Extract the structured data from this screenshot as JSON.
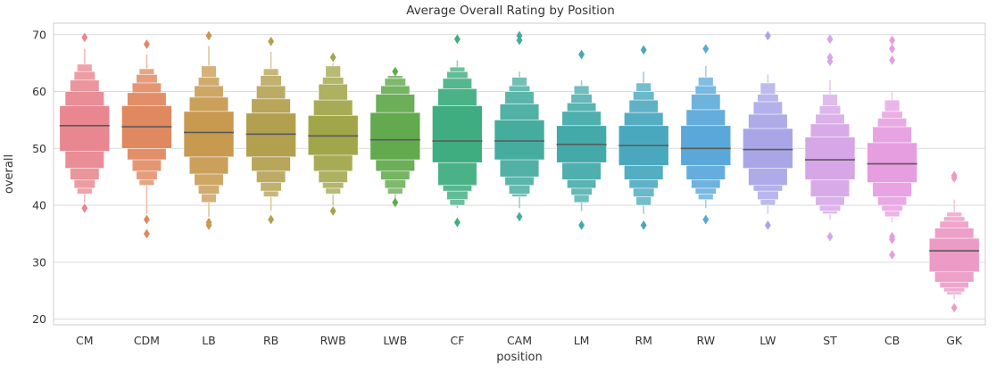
{
  "chart_data": {
    "type": "boxen",
    "title": "Average Overall Rating by Position",
    "xlabel": "position",
    "ylabel": "overall",
    "ylim": [
      19,
      72
    ],
    "yticks": [
      20,
      30,
      40,
      50,
      60,
      70
    ],
    "grid": true,
    "legend": "none",
    "categories": [
      "CM",
      "CDM",
      "LB",
      "RB",
      "RWB",
      "LWB",
      "CF",
      "CAM",
      "LM",
      "RM",
      "RW",
      "LW",
      "ST",
      "CB",
      "GK"
    ],
    "series": [
      {
        "category": "CM",
        "color": "#e8878f",
        "median": 54.0,
        "levels": [
          [
            49.5,
            57.5
          ],
          [
            46.5,
            60.0
          ],
          [
            44.5,
            62.0
          ],
          [
            43.0,
            63.5
          ],
          [
            42.0,
            64.8
          ]
        ],
        "whisker": [
          40.5,
          67.5
        ],
        "outliers": [
          39.5,
          69.5
        ]
      },
      {
        "category": "CDM",
        "color": "#e0885f",
        "median": 53.8,
        "levels": [
          [
            50.0,
            57.5
          ],
          [
            48.0,
            59.8
          ],
          [
            46.0,
            61.5
          ],
          [
            44.5,
            63.0
          ],
          [
            43.5,
            64.0
          ]
        ],
        "whisker": [
          38.5,
          66.5
        ],
        "outliers": [
          37.5,
          35.0,
          68.3
        ]
      },
      {
        "category": "LB",
        "color": "#c79a50",
        "median": 52.8,
        "levels": [
          [
            48.5,
            56.5
          ],
          [
            45.5,
            59.0
          ],
          [
            43.5,
            61.0
          ],
          [
            42.0,
            62.5
          ],
          [
            40.5,
            64.5
          ]
        ],
        "whisker": [
          38.0,
          68.0
        ],
        "outliers": [
          37.0,
          36.5,
          69.8
        ]
      },
      {
        "category": "RB",
        "color": "#b3a04f",
        "median": 52.5,
        "levels": [
          [
            48.5,
            56.2
          ],
          [
            46.0,
            58.7
          ],
          [
            44.0,
            61.0
          ],
          [
            42.5,
            62.8
          ],
          [
            41.5,
            64.0
          ]
        ],
        "whisker": [
          39.0,
          67.0
        ],
        "outliers": [
          37.5,
          68.8
        ]
      },
      {
        "category": "RWB",
        "color": "#a2a64a",
        "median": 52.2,
        "levels": [
          [
            48.8,
            55.8
          ],
          [
            46.0,
            58.5
          ],
          [
            44.0,
            61.3
          ],
          [
            43.0,
            62.5
          ],
          [
            42.0,
            64.5
          ]
        ],
        "whisker": [
          40.0,
          65.0
        ],
        "outliers": [
          39.0,
          66.0
        ]
      },
      {
        "category": "LWB",
        "color": "#62aa4d",
        "median": 51.5,
        "levels": [
          [
            48.0,
            56.3
          ],
          [
            46.0,
            59.5
          ],
          [
            44.5,
            61.0
          ],
          [
            43.0,
            62.3
          ],
          [
            42.0,
            62.8
          ]
        ],
        "whisker": [
          41.0,
          63.0
        ],
        "outliers": [
          40.5,
          63.5
        ]
      },
      {
        "category": "CF",
        "color": "#3fad80",
        "median": 51.3,
        "levels": [
          [
            47.5,
            57.5
          ],
          [
            43.5,
            60.5
          ],
          [
            42.5,
            62.3
          ],
          [
            41.0,
            63.5
          ],
          [
            40.0,
            64.3
          ]
        ],
        "whisker": [
          39.5,
          65.5
        ],
        "outliers": [
          37.0,
          69.2
        ]
      },
      {
        "category": "CAM",
        "color": "#45ac9e",
        "median": 51.3,
        "levels": [
          [
            48.0,
            55.0
          ],
          [
            45.0,
            57.8
          ],
          [
            43.5,
            60.0
          ],
          [
            42.0,
            61.0
          ],
          [
            41.5,
            62.5
          ]
        ],
        "whisker": [
          39.5,
          63.5
        ],
        "outliers": [
          38.0,
          69.8,
          69.0
        ]
      },
      {
        "category": "LM",
        "color": "#43aaa9",
        "median": 50.7,
        "levels": [
          [
            47.5,
            54.0
          ],
          [
            44.5,
            56.5
          ],
          [
            43.0,
            58.0
          ],
          [
            41.8,
            59.5
          ],
          [
            40.5,
            61.0
          ]
        ],
        "whisker": [
          39.0,
          62.0
        ],
        "outliers": [
          36.5,
          66.5
        ]
      },
      {
        "category": "RM",
        "color": "#49a8be",
        "median": 50.5,
        "levels": [
          [
            47.0,
            54.0
          ],
          [
            44.5,
            56.3
          ],
          [
            43.0,
            58.5
          ],
          [
            41.5,
            60.0
          ],
          [
            40.0,
            61.5
          ]
        ],
        "whisker": [
          38.5,
          63.5
        ],
        "outliers": [
          36.5,
          67.3
        ]
      },
      {
        "category": "RW",
        "color": "#5aa8da",
        "median": 50.0,
        "levels": [
          [
            47.0,
            54.0
          ],
          [
            44.5,
            56.8
          ],
          [
            43.0,
            59.5
          ],
          [
            42.0,
            61.0
          ],
          [
            41.0,
            62.5
          ]
        ],
        "whisker": [
          39.5,
          64.5
        ],
        "outliers": [
          37.5,
          67.5
        ]
      },
      {
        "category": "LW",
        "color": "#a9a6e8",
        "median": 49.8,
        "levels": [
          [
            46.5,
            53.5
          ],
          [
            43.5,
            56.0
          ],
          [
            42.5,
            58.2
          ],
          [
            41.0,
            59.5
          ],
          [
            40.0,
            61.5
          ]
        ],
        "whisker": [
          38.5,
          63.0
        ],
        "outliers": [
          36.5,
          69.8
        ]
      },
      {
        "category": "ST",
        "color": "#d6a6e6",
        "median": 48.0,
        "levels": [
          [
            44.5,
            52.0
          ],
          [
            41.5,
            54.3
          ],
          [
            40.0,
            56.0
          ],
          [
            39.0,
            57.5
          ],
          [
            38.5,
            59.5
          ]
        ],
        "whisker": [
          37.5,
          62.0
        ],
        "outliers": [
          34.5,
          65.3,
          66.0,
          69.2
        ]
      },
      {
        "category": "CB",
        "color": "#e69ee0",
        "median": 47.3,
        "levels": [
          [
            44.0,
            51.0
          ],
          [
            41.5,
            53.8
          ],
          [
            40.0,
            55.3
          ],
          [
            39.0,
            56.5
          ],
          [
            38.0,
            58.5
          ]
        ],
        "whisker": [
          37.0,
          60.0
        ],
        "outliers": [
          34.5,
          34.0,
          31.3,
          65.5,
          67.5,
          69.0
        ]
      },
      {
        "category": "GK",
        "color": "#ec9ac6",
        "median": 32.0,
        "levels": [
          [
            28.3,
            34.2
          ],
          [
            26.5,
            36.0
          ],
          [
            25.5,
            37.2
          ],
          [
            24.8,
            38.0
          ],
          [
            24.3,
            38.8
          ]
        ],
        "whisker": [
          23.5,
          41.0
        ],
        "outliers": [
          22.0,
          45.2,
          44.8
        ]
      }
    ]
  }
}
